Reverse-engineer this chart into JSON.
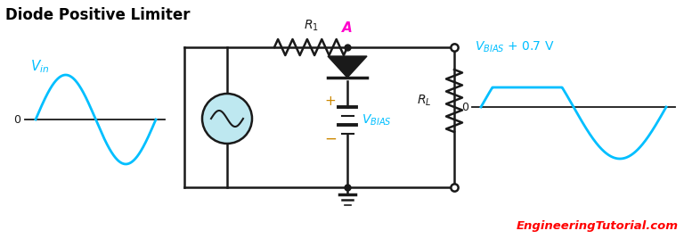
{
  "title": "Diode Positive Limiter",
  "title_color": "#000000",
  "title_fontsize": 12,
  "bg_color": "#ffffff",
  "cyan_color": "#00BFFF",
  "magenta_color": "#FF00CC",
  "red_color": "#FF0000",
  "dark_color": "#1a1a1a",
  "gold_color": "#CC8800",
  "website_color": "#FF0000",
  "label_website": "EngineeringTutorial.com"
}
